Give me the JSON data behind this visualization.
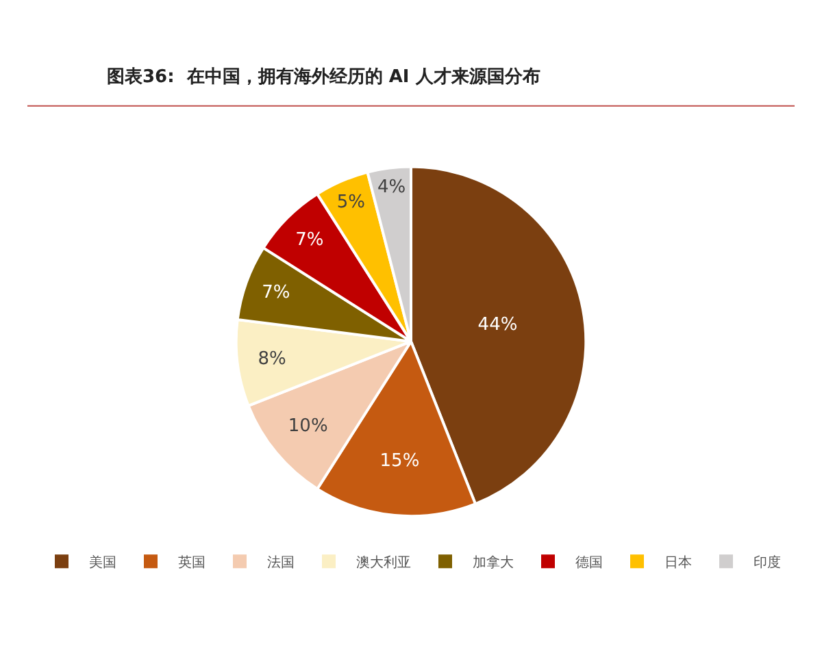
{
  "chart_data": {
    "type": "pie",
    "title": "图表36:  在中国，拥有海外经历的 AI 人才来源国分布",
    "categories": [
      "美国",
      "英国",
      "法国",
      "澳大利亚",
      "加拿大",
      "德国",
      "日本",
      "印度"
    ],
    "values": [
      44,
      15,
      10,
      8,
      7,
      7,
      5,
      4
    ],
    "colors": [
      "#7b3f10",
      "#c55a11",
      "#f4cbb0",
      "#fbefc4",
      "#7f6000",
      "#c00000",
      "#ffc000",
      "#d0cece"
    ],
    "value_labels": [
      "44%",
      "15%",
      "10%",
      "8%",
      "7%",
      "7%",
      "5%",
      "4%"
    ],
    "legend": "bottom"
  }
}
